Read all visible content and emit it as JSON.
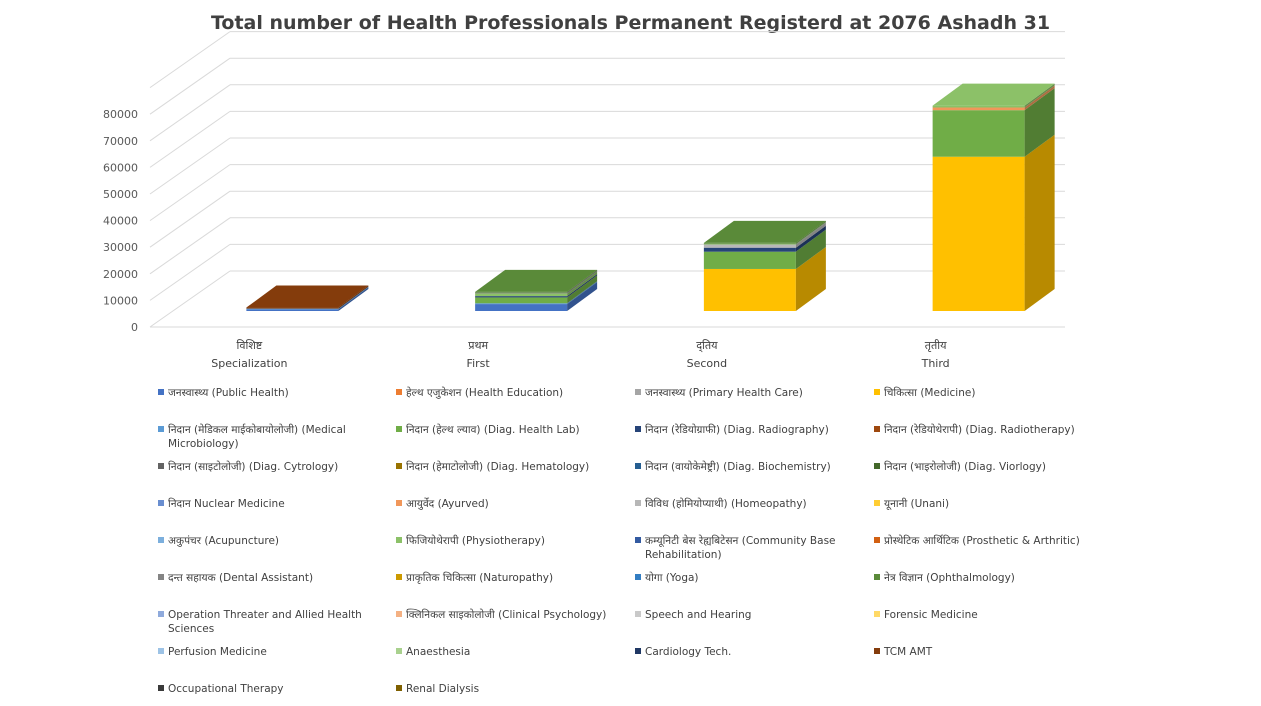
{
  "chart_data": {
    "type": "bar",
    "stacked": true,
    "style": "3d",
    "title": "Total number of Health Professionals  Permanent Registerd at 2076 Ashadh 31",
    "categories": [
      {
        "line1": "विशिष्ट",
        "line2": "Specialization"
      },
      {
        "line1": "प्रथम",
        "line2": "First"
      },
      {
        "line1": "द्तिय",
        "line2": "Second"
      },
      {
        "line1": "तृतीय",
        "line2": "Third"
      }
    ],
    "yticks": [
      "0",
      "10000",
      "20000",
      "30000",
      "40000",
      "50000",
      "60000",
      "70000",
      "80000"
    ],
    "ylim": [
      0,
      90000
    ],
    "grid": true,
    "legend_position": "bottom",
    "series": [
      {
        "name": "जनस्वास्थ्य (Public Health)",
        "color": "#4472c4",
        "values": [
          600,
          2600,
          0,
          0
        ]
      },
      {
        "name": "हेल्थ एजुकेशन (Health Education)",
        "color": "#ed7d31",
        "values": [
          0,
          0,
          0,
          0
        ]
      },
      {
        "name": "जनस्वास्थ्य (Primary Health Care)",
        "color": "#a5a5a5",
        "values": [
          0,
          0,
          0,
          0
        ]
      },
      {
        "name": "चिकित्सा (Medicine)",
        "color": "#ffc000",
        "values": [
          0,
          0,
          15800,
          58000
        ]
      },
      {
        "name": "निदान (मेडिकल माईकोबायोलोजी) (Medical Microbiology)",
        "color": "#5b9bd5",
        "values": [
          300,
          300,
          0,
          0
        ]
      },
      {
        "name": "निदान (हेल्थ ल्याव) (Diag. Health Lab)",
        "color": "#70ad47",
        "values": [
          0,
          2200,
          6500,
          17500
        ]
      },
      {
        "name": "निदान (रेडियोग्राफी) (Diag. Radiography)",
        "color": "#264478",
        "values": [
          0,
          500,
          1500,
          0
        ]
      },
      {
        "name": "निदान (रेडियोथेरापी) (Diag. Radiotherapy)",
        "color": "#9e480e",
        "values": [
          0,
          0,
          0,
          0
        ]
      },
      {
        "name": "निदान (साइटोलोजी) (Diag. Cytrology)",
        "color": "#636363",
        "values": [
          0,
          0,
          0,
          0
        ]
      },
      {
        "name": "निदान (हेमाटोलोजी) (Diag. Hematology)",
        "color": "#997300",
        "values": [
          0,
          0,
          0,
          0
        ]
      },
      {
        "name": "निदान (वायोकेमेष्ट्री) (Diag. Biochemistry)",
        "color": "#255e91",
        "values": [
          0,
          0,
          0,
          0
        ]
      },
      {
        "name": "निदान (भाइरोलोजी) (Diag. Viorlogy)",
        "color": "#43682b",
        "values": [
          0,
          0,
          0,
          0
        ]
      },
      {
        "name": "निदान Nuclear Medicine",
        "color": "#698ed0",
        "values": [
          0,
          0,
          0,
          0
        ]
      },
      {
        "name": "आयुर्वेद (Ayurved)",
        "color": "#f1975a",
        "values": [
          0,
          0,
          0,
          1000
        ]
      },
      {
        "name": "विविध (होमियोप्याथी) (Homeopathy)",
        "color": "#b7b7b7",
        "values": [
          0,
          0,
          1200,
          0
        ]
      },
      {
        "name": "यूनानी (Unani)",
        "color": "#ffcd33",
        "values": [
          0,
          0,
          0,
          0
        ]
      },
      {
        "name": "अकुपंचर (Acupuncture)",
        "color": "#7cafdd",
        "values": [
          0,
          0,
          0,
          0
        ]
      },
      {
        "name": "फिजियोथेरापी (Physiotherapy)",
        "color": "#8cc168",
        "values": [
          0,
          1000,
          300,
          700
        ]
      },
      {
        "name": "कम्यूनिटी बेस रेह्यबिटेसन (Community Base Rehabilitation)",
        "color": "#335aa1",
        "values": [
          0,
          0,
          0,
          0
        ]
      },
      {
        "name": "प्रोस्थेटिक आर्थिटिक (Prosthetic & Arthritic)",
        "color": "#d26012",
        "values": [
          0,
          0,
          0,
          0
        ]
      },
      {
        "name": "दन्त सहायक (Dental Assistant)",
        "color": "#848484",
        "values": [
          0,
          300,
          0,
          0
        ]
      },
      {
        "name": "प्राकृतिक चिकित्सा (Naturopathy)",
        "color": "#cc9a00",
        "values": [
          0,
          0,
          0,
          0
        ]
      },
      {
        "name": "योगा (Yoga)",
        "color": "#327dc2",
        "values": [
          0,
          0,
          0,
          0
        ]
      },
      {
        "name": "नेत्र विज्ञान (Ophthalmology)",
        "color": "#5a8a39",
        "values": [
          0,
          300,
          300,
          0
        ]
      },
      {
        "name": "Operation Threater and Allied Health Sciences",
        "color": "#8faadc",
        "values": [
          0,
          0,
          0,
          0
        ]
      },
      {
        "name": "क्लिनिकल साइकोलोजी (Clinical Psychology)",
        "color": "#f4b183",
        "values": [
          0,
          0,
          0,
          0
        ]
      },
      {
        "name": "Speech and Hearing",
        "color": "#c9c9c9",
        "values": [
          0,
          0,
          0,
          0
        ]
      },
      {
        "name": "Forensic Medicine",
        "color": "#ffd966",
        "values": [
          0,
          0,
          0,
          0
        ]
      },
      {
        "name": "Perfusion Medicine",
        "color": "#9dc3e6",
        "values": [
          0,
          0,
          0,
          0
        ]
      },
      {
        "name": "Anaesthesia",
        "color": "#a9d18e",
        "values": [
          0,
          0,
          0,
          0
        ]
      },
      {
        "name": "Cardiology Tech.",
        "color": "#203864",
        "values": [
          0,
          0,
          0,
          0
        ]
      },
      {
        "name": "TCM AMT",
        "color": "#843c0c",
        "values": [
          400,
          0,
          0,
          0
        ]
      },
      {
        "name": "Occupational Therapy",
        "color": "#3a3a3a",
        "values": [
          0,
          0,
          0,
          0
        ]
      },
      {
        "name": "Renal Dialysis",
        "color": "#7f6000",
        "values": [
          0,
          0,
          0,
          0
        ]
      }
    ]
  }
}
